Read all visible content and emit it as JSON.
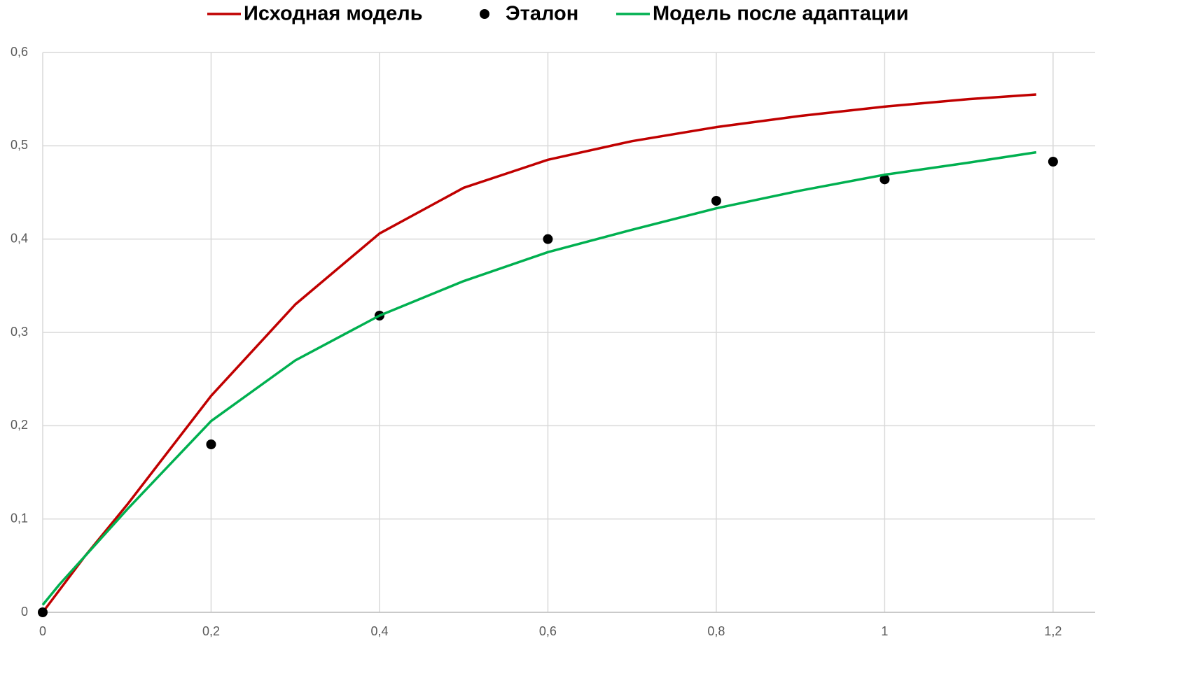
{
  "chart_data": {
    "type": "line",
    "series": [
      {
        "name": "Исходная модель",
        "color": "#c00000",
        "mode": "line",
        "x": [
          0,
          0.05,
          0.1,
          0.2,
          0.3,
          0.4,
          0.5,
          0.6,
          0.7,
          0.8,
          0.9,
          1.0,
          1.1,
          1.18
        ],
        "values": [
          0,
          0.06,
          0.115,
          0.232,
          0.33,
          0.406,
          0.455,
          0.485,
          0.505,
          0.52,
          0.532,
          0.542,
          0.55,
          0.555
        ]
      },
      {
        "name": "Эталон",
        "color": "#000000",
        "mode": "markers",
        "x": [
          0,
          0.2,
          0.4,
          0.6,
          0.8,
          1.0,
          1.2
        ],
        "values": [
          0,
          0.18,
          0.318,
          0.4,
          0.441,
          0.464,
          0.483
        ]
      },
      {
        "name": "Модель после адаптации",
        "color": "#00b050",
        "mode": "line",
        "x": [
          0,
          0.02,
          0.1,
          0.2,
          0.3,
          0.4,
          0.5,
          0.6,
          0.7,
          0.8,
          0.9,
          1.0,
          1.1,
          1.18
        ],
        "values": [
          0.008,
          0.03,
          0.11,
          0.205,
          0.27,
          0.318,
          0.355,
          0.386,
          0.41,
          0.433,
          0.452,
          0.469,
          0.482,
          0.493
        ]
      }
    ],
    "xlim": [
      0,
      1.25
    ],
    "xticks": [
      0,
      {
        "value": 0.2,
        "label": "0,2"
      },
      {
        "value": 0.4,
        "label": "0,4"
      },
      {
        "value": 0.6,
        "label": "0,6"
      },
      {
        "value": 0.8,
        "label": "0,8"
      },
      1,
      {
        "value": 1.2,
        "label": "1,2"
      }
    ],
    "ylim": [
      0,
      0.6
    ],
    "yticks": [
      0,
      {
        "value": 0.1,
        "label": "0,1"
      },
      {
        "value": 0.2,
        "label": "0,2"
      },
      {
        "value": 0.3,
        "label": "0,3"
      },
      {
        "value": 0.4,
        "label": "0,4"
      },
      {
        "value": 0.5,
        "label": "0,5"
      },
      {
        "value": 0.6,
        "label": "0,6"
      }
    ],
    "grid": true,
    "legend": "top"
  }
}
